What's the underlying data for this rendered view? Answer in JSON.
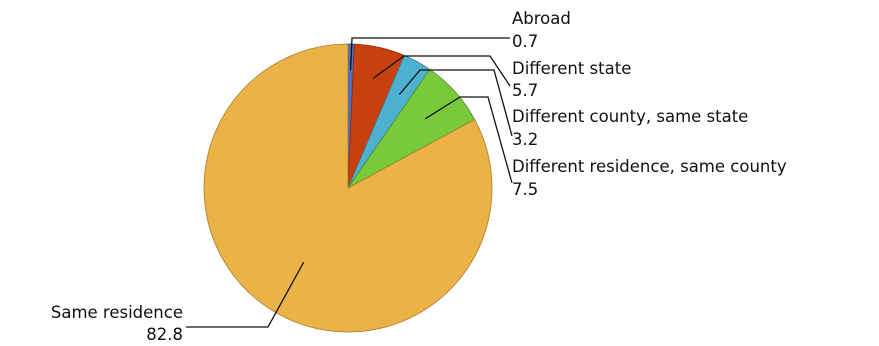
{
  "chart_data": {
    "type": "pie",
    "categories": [
      "Abroad",
      "Different state",
      "Different county, same state",
      "Different residence, same county",
      "Same residence"
    ],
    "values": [
      0.7,
      5.7,
      3.2,
      7.5,
      82.8
    ],
    "labels": [
      "0.7",
      "5.7",
      "3.2",
      "7.5",
      "82.8"
    ],
    "colors": [
      "#4a6fc4",
      "#c8400e",
      "#4db2d0",
      "#78c93c",
      "#ebb245"
    ],
    "title": "",
    "legend": "none"
  }
}
